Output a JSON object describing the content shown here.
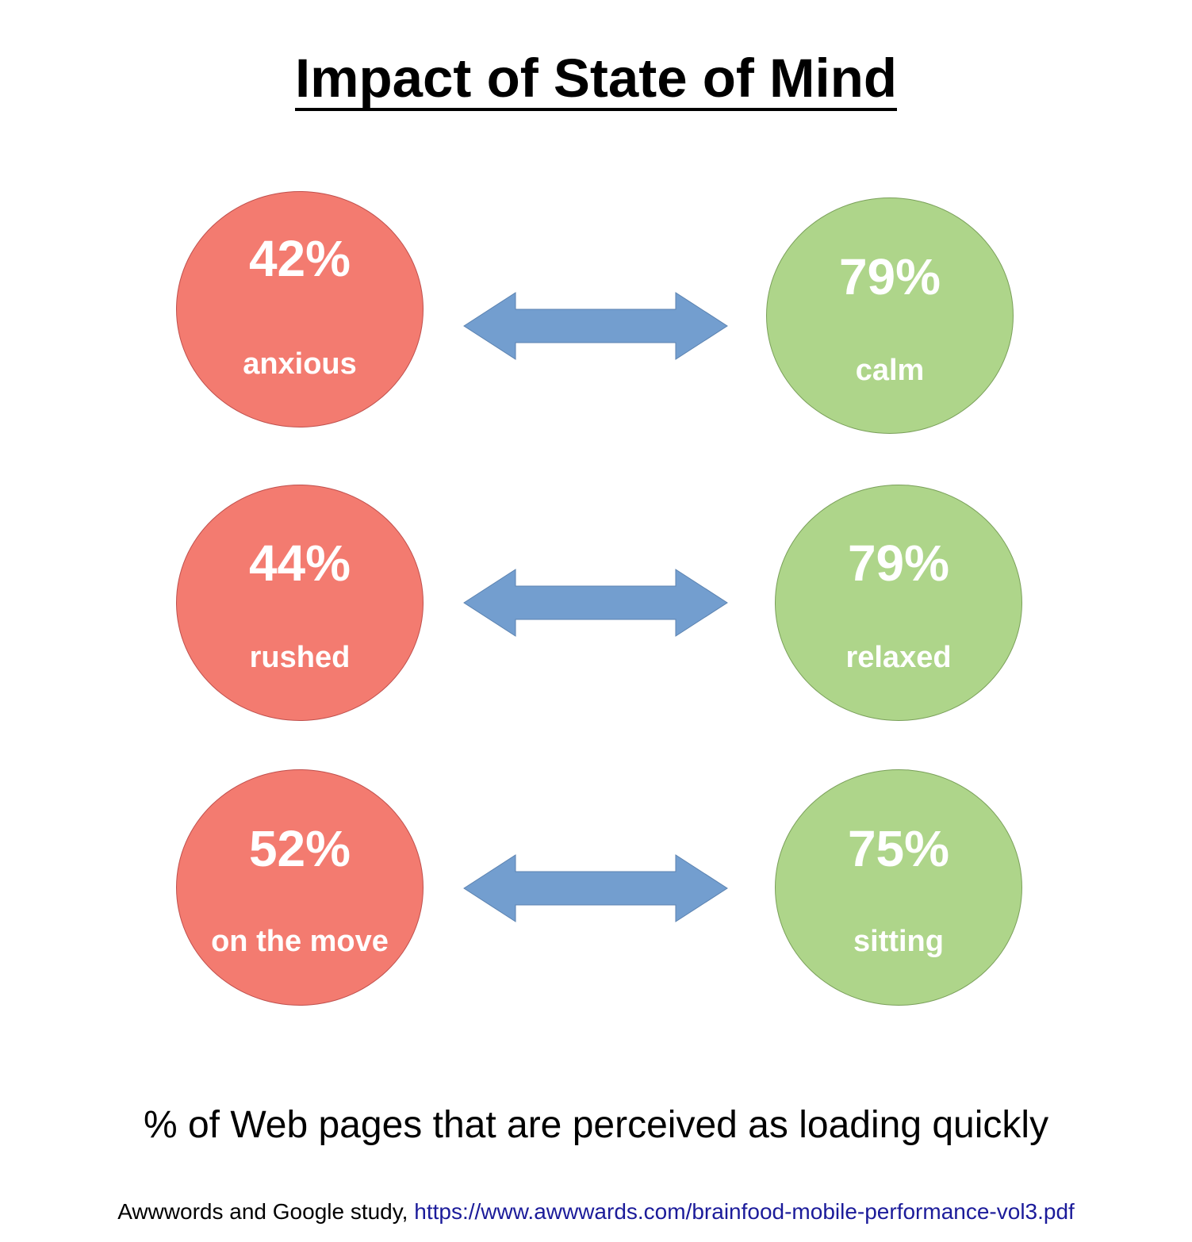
{
  "title": "Impact of State of Mind",
  "colors": {
    "negative_fill": "#f37b70",
    "negative_border": "#c0504d",
    "positive_fill": "#aed58a",
    "positive_border": "#7aa05a",
    "arrow_fill": "#739ecf",
    "arrow_border": "#5b82b0",
    "link": "#1b1b9a"
  },
  "pairs": [
    {
      "left": {
        "value": "42%",
        "label": "anxious",
        "percent": 42
      },
      "right": {
        "value": "79%",
        "label": "calm",
        "percent": 79
      },
      "arrow_icon": "double-arrow-icon"
    },
    {
      "left": {
        "value": "44%",
        "label": "rushed",
        "percent": 44
      },
      "right": {
        "value": "79%",
        "label": "relaxed",
        "percent": 79
      },
      "arrow_icon": "double-arrow-icon"
    },
    {
      "left": {
        "value": "52%",
        "label": "on the move",
        "percent": 52
      },
      "right": {
        "value": "75%",
        "label": "sitting",
        "percent": 75
      },
      "arrow_icon": "double-arrow-icon"
    }
  ],
  "caption": "% of Web pages that are perceived as loading quickly",
  "source": {
    "prefix": "Awwwords and Google study, ",
    "link_text": "https://www.awwwards.com/brainfood-mobile-performance-vol3.pdf"
  }
}
